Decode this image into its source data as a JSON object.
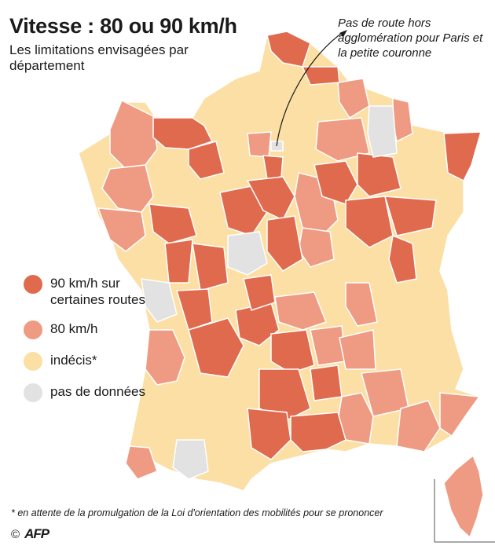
{
  "header": {
    "title": "Vitesse : 80 ou 90 km/h",
    "subtitle": "Les limitations envisagées par département"
  },
  "annotation": "Pas de route hors agglomération pour Paris et la petite couronne",
  "legend": {
    "items": [
      {
        "key": "90",
        "label": "90 km/h sur certaines routes",
        "color": "#e06a4e"
      },
      {
        "key": "80",
        "label": "80 km/h",
        "color": "#ef9a82"
      },
      {
        "key": "undecided",
        "label": "indécis*",
        "color": "#fbdfa4"
      },
      {
        "key": "nodata",
        "label": "pas de données",
        "color": "#e2e2e2"
      }
    ]
  },
  "footnote": "* en attente de la promulgation de la Loi d'orientation des mobilités  pour se prononcer",
  "credit": {
    "copyright": "©",
    "logo": "AFP",
    "logo_icon": "afp-logo-icon"
  },
  "colors": {
    "border": "#ffffff",
    "annotation_line": "#1a1a1a"
  }
}
